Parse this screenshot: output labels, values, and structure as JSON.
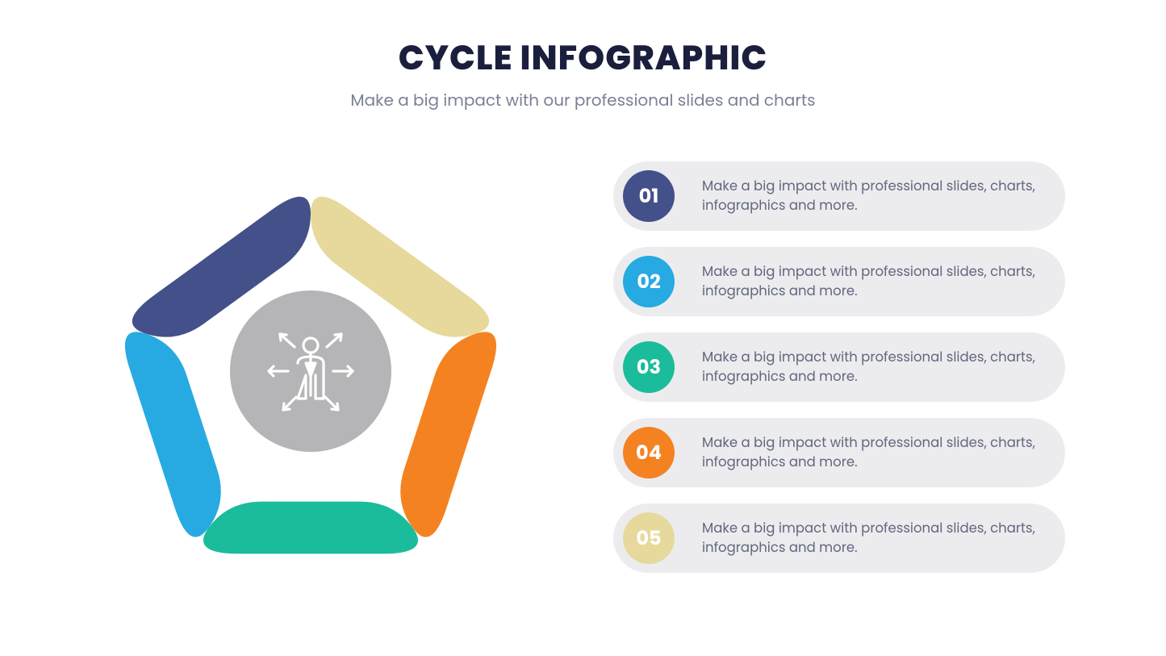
{
  "header": {
    "title": "CYCLE INFOGRAPHIC",
    "title_color": "#1a1f3d",
    "title_fontsize": 42,
    "subtitle": "Make a big impact with our professional slides and charts",
    "subtitle_color": "#7b8096",
    "subtitle_fontsize": 20
  },
  "diagram": {
    "type": "pentagon-cycle",
    "center_circle_color": "#b5b5b7",
    "center_icon": "person-arrows-icon",
    "center_icon_color": "#ffffff",
    "segments": [
      {
        "id": "top-left",
        "color": "#435089"
      },
      {
        "id": "top-right",
        "color": "#e6d99b"
      },
      {
        "id": "right",
        "color": "#f58220"
      },
      {
        "id": "bottom",
        "color": "#1bbc9b"
      },
      {
        "id": "left",
        "color": "#27aae1"
      }
    ],
    "stroke_width": 60,
    "corner_radius": 40,
    "background": "#ffffff"
  },
  "list": {
    "item_bg": "#ececee",
    "item_text_color": "#62677e",
    "item_height": 86,
    "item_radius": 43,
    "badge_size": 64,
    "badge_fontsize": 24,
    "items": [
      {
        "num": "01",
        "badge_color": "#435089",
        "text": "Make a big impact with professional slides, charts, infographics and more."
      },
      {
        "num": "02",
        "badge_color": "#27aae1",
        "text": "Make a big impact with professional slides, charts, infographics and more."
      },
      {
        "num": "03",
        "badge_color": "#1bbc9b",
        "text": "Make a big impact with professional slides, charts, infographics and more."
      },
      {
        "num": "04",
        "badge_color": "#f58220",
        "text": "Make a big impact with professional slides, charts, infographics and more."
      },
      {
        "num": "05",
        "badge_color": "#e6d99b",
        "text": "Make a big impact with professional slides, charts, infographics and more."
      }
    ]
  }
}
